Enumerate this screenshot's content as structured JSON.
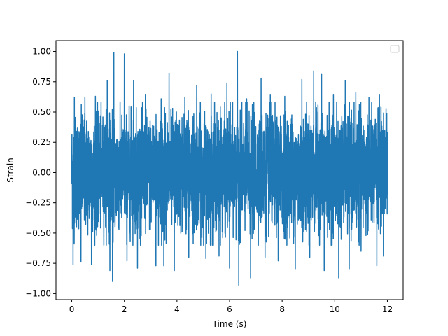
{
  "chart_data": {
    "type": "line",
    "title": "",
    "xlabel": "Time (s)",
    "ylabel": "Strain",
    "xlim": [
      -0.6,
      12.6
    ],
    "ylim": [
      -1.05,
      1.09
    ],
    "xticks": [
      0,
      2,
      4,
      6,
      8,
      10,
      12
    ],
    "xtick_labels": [
      "0",
      "2",
      "4",
      "6",
      "8",
      "10",
      "12"
    ],
    "yticks": [
      -1.0,
      -0.75,
      -0.5,
      -0.25,
      0.0,
      0.25,
      0.5,
      0.75,
      1.0
    ],
    "ytick_labels": [
      "−1.00",
      "−0.75",
      "−0.50",
      "−0.25",
      "0.00",
      "0.25",
      "0.50",
      "0.75",
      "1.00"
    ],
    "grid": false,
    "legend": {
      "placement": "top-right",
      "entries": []
    },
    "series": [
      {
        "color": "#1f77b4",
        "x_range": [
          0,
          12
        ],
        "typical_band": [
          -0.45,
          0.45
        ],
        "peaks": [
          {
            "x": 0.1,
            "y": 0.62
          },
          {
            "x": 0.5,
            "y": 0.62
          },
          {
            "x": 0.9,
            "y": 0.63
          },
          {
            "x": 1.35,
            "y": 0.76
          },
          {
            "x": 1.6,
            "y": 0.99
          },
          {
            "x": 2.0,
            "y": 0.98
          },
          {
            "x": 2.35,
            "y": 0.76
          },
          {
            "x": 2.8,
            "y": 0.64
          },
          {
            "x": 3.4,
            "y": 0.61
          },
          {
            "x": 3.7,
            "y": 0.82
          },
          {
            "x": 4.3,
            "y": 0.62
          },
          {
            "x": 4.75,
            "y": 0.72
          },
          {
            "x": 5.3,
            "y": 0.65
          },
          {
            "x": 5.9,
            "y": 0.74
          },
          {
            "x": 6.3,
            "y": 1.0
          },
          {
            "x": 6.65,
            "y": 0.61
          },
          {
            "x": 7.2,
            "y": 0.78
          },
          {
            "x": 7.55,
            "y": 0.64
          },
          {
            "x": 8.1,
            "y": 0.63
          },
          {
            "x": 8.75,
            "y": 0.77
          },
          {
            "x": 9.2,
            "y": 0.84
          },
          {
            "x": 9.5,
            "y": 0.81
          },
          {
            "x": 9.95,
            "y": 0.64
          },
          {
            "x": 10.4,
            "y": 0.76
          },
          {
            "x": 10.8,
            "y": 0.66
          },
          {
            "x": 11.3,
            "y": 0.62
          },
          {
            "x": 11.7,
            "y": 0.64
          },
          {
            "x": 11.95,
            "y": 0.53
          }
        ],
        "troughs": [
          {
            "x": 0.05,
            "y": -0.76
          },
          {
            "x": 0.35,
            "y": -0.74
          },
          {
            "x": 0.75,
            "y": -0.76
          },
          {
            "x": 1.45,
            "y": -0.81
          },
          {
            "x": 1.55,
            "y": -0.9
          },
          {
            "x": 2.1,
            "y": -0.73
          },
          {
            "x": 2.5,
            "y": -0.79
          },
          {
            "x": 3.2,
            "y": -0.77
          },
          {
            "x": 3.5,
            "y": -0.77
          },
          {
            "x": 3.9,
            "y": -0.81
          },
          {
            "x": 4.45,
            "y": -0.7
          },
          {
            "x": 5.1,
            "y": -0.71
          },
          {
            "x": 5.6,
            "y": -0.69
          },
          {
            "x": 6.0,
            "y": -0.79
          },
          {
            "x": 6.35,
            "y": -0.93
          },
          {
            "x": 6.8,
            "y": -0.87
          },
          {
            "x": 7.35,
            "y": -0.7
          },
          {
            "x": 7.85,
            "y": -0.73
          },
          {
            "x": 8.5,
            "y": -0.8
          },
          {
            "x": 9.05,
            "y": -0.7
          },
          {
            "x": 9.6,
            "y": -0.81
          },
          {
            "x": 10.15,
            "y": -0.87
          },
          {
            "x": 10.55,
            "y": -0.8
          },
          {
            "x": 11.0,
            "y": -0.65
          },
          {
            "x": 11.6,
            "y": -0.77
          },
          {
            "x": 11.85,
            "y": -0.69
          }
        ]
      }
    ]
  }
}
